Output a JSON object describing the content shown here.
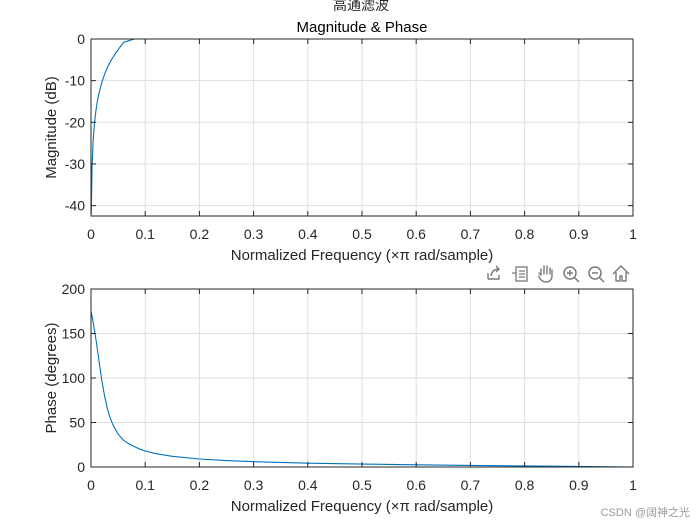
{
  "figure": {
    "suptitle": "高通滤波",
    "watermark": "CSDN @阔神之光"
  },
  "toolbar": {
    "items": [
      "export-icon",
      "data-tips-icon",
      "pan-icon",
      "zoom-in-icon",
      "zoom-out-icon",
      "home-icon"
    ]
  },
  "chart_data": [
    {
      "type": "line",
      "title": "Magnitude & Phase",
      "xlabel": "Normalized Frequency  (×π rad/sample)",
      "ylabel": "Magnitude (dB)",
      "xlim": [
        0,
        1
      ],
      "ylim": [
        -42.5,
        0
      ],
      "xticks": [
        0,
        0.1,
        0.2,
        0.3,
        0.4,
        0.5,
        0.6,
        0.7,
        0.8,
        0.9,
        1
      ],
      "xtick_labels": [
        "0",
        "0.1",
        "0.2",
        "0.3",
        "0.4",
        "0.5",
        "0.6",
        "0.7",
        "0.8",
        "0.9",
        "1"
      ],
      "yticks": [
        0,
        -10,
        -20,
        -30,
        -40
      ],
      "ytick_labels": [
        "0",
        "-10",
        "-20",
        "-30",
        "-40"
      ],
      "grid": true,
      "color": "#0072BD",
      "series": [
        {
          "name": "Magnitude",
          "x": [
            0.0005,
            0.002,
            0.004,
            0.006,
            0.008,
            0.01,
            0.012,
            0.015,
            0.018,
            0.021,
            0.025,
            0.03,
            0.035,
            0.04,
            0.045,
            0.05,
            0.06,
            0.08,
            0.1,
            0.15,
            0.2,
            0.3,
            0.5,
            0.7,
            1.0
          ],
          "y": [
            -42,
            -30.3,
            -24.3,
            -20.8,
            -18.3,
            -16.4,
            -14.8,
            -12.9,
            -11.4,
            -10.0,
            -8.5,
            -6.9,
            -5.6,
            -4.5,
            -3.5,
            -2.6,
            -0.8,
            0.0,
            0.0,
            0.0,
            0.0,
            0.0,
            0.0,
            0.0,
            0.0
          ]
        }
      ]
    },
    {
      "type": "line",
      "title": "",
      "xlabel": "Normalized Frequency  (×π rad/sample)",
      "ylabel": "Phase (degrees)",
      "xlim": [
        0,
        1
      ],
      "ylim": [
        0,
        200
      ],
      "xticks": [
        0,
        0.1,
        0.2,
        0.3,
        0.4,
        0.5,
        0.6,
        0.7,
        0.8,
        0.9,
        1
      ],
      "xtick_labels": [
        "0",
        "0.1",
        "0.2",
        "0.3",
        "0.4",
        "0.5",
        "0.6",
        "0.7",
        "0.8",
        "0.9",
        "1"
      ],
      "yticks": [
        0,
        50,
        100,
        150,
        200
      ],
      "ytick_labels": [
        "0",
        "50",
        "100",
        "150",
        "200"
      ],
      "grid": true,
      "color": "#0072BD",
      "series": [
        {
          "name": "Phase",
          "x": [
            0.0,
            0.003,
            0.006,
            0.01,
            0.015,
            0.02,
            0.025,
            0.03,
            0.035,
            0.04,
            0.05,
            0.06,
            0.07,
            0.08,
            0.09,
            0.1,
            0.12,
            0.15,
            0.2,
            0.25,
            0.3,
            0.35,
            0.4,
            0.5,
            0.6,
            0.7,
            0.8,
            0.9,
            1.0
          ],
          "y": [
            175,
            166,
            155,
            140,
            118,
            97,
            80,
            66,
            56,
            48,
            37,
            30,
            26,
            23,
            20,
            18,
            15,
            12,
            9,
            7.2,
            6.0,
            5.1,
            4.3,
            3.3,
            2.5,
            1.8,
            1.2,
            0.6,
            0
          ]
        }
      ]
    }
  ]
}
